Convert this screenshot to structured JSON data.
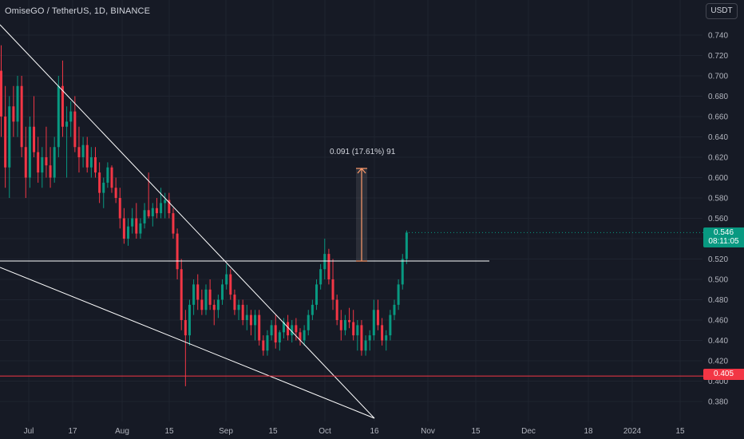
{
  "header": {
    "symbol_name": "OmiseGO",
    "quote_name": "TetherUS",
    "interval": "1D",
    "exchange": "BINANCE"
  },
  "toolbar": {
    "currency_label": "USDT"
  },
  "price_axis": {
    "labels": [
      "0.740",
      "0.720",
      "0.700",
      "0.680",
      "0.660",
      "0.640",
      "0.620",
      "0.600",
      "0.580",
      "0.560",
      "0.540",
      "0.520",
      "0.500",
      "0.480",
      "0.460",
      "0.440",
      "0.420",
      "0.400",
      "0.380"
    ]
  },
  "time_axis": {
    "labels": [
      "Jul",
      "17",
      "Aug",
      "15",
      "Sep",
      "15",
      "Oct",
      "16",
      "Nov",
      "15",
      "Dec",
      "18",
      "2024",
      "15"
    ]
  },
  "current_price": {
    "value": "0.546",
    "countdown": "08:11:05"
  },
  "level_marker": {
    "value": "0.405"
  },
  "measure_annotation": {
    "text": "0.091 (17.61%) 91"
  },
  "colors": {
    "background": "#161a25",
    "up": "#089981",
    "down": "#f23645",
    "grid": "#1f2430",
    "axis_text": "#b2b5be",
    "trendline": "#ffffff",
    "measure": "#ff9b6b"
  },
  "chart_data": {
    "type": "candlestick",
    "ylim": [
      0.37,
      0.75
    ],
    "horizontal_levels": [
      0.518,
      0.405
    ],
    "measure": {
      "from": 0.518,
      "to": 0.609
    },
    "candles": [
      [
        0.705,
        0.73,
        0.64,
        0.66
      ],
      [
        0.66,
        0.69,
        0.59,
        0.61
      ],
      [
        0.61,
        0.68,
        0.58,
        0.67
      ],
      [
        0.67,
        0.69,
        0.64,
        0.655
      ],
      [
        0.655,
        0.7,
        0.64,
        0.69
      ],
      [
        0.69,
        0.7,
        0.62,
        0.63
      ],
      [
        0.63,
        0.65,
        0.58,
        0.6
      ],
      [
        0.6,
        0.66,
        0.59,
        0.65
      ],
      [
        0.65,
        0.68,
        0.62,
        0.625
      ],
      [
        0.625,
        0.64,
        0.595,
        0.605
      ],
      [
        0.605,
        0.63,
        0.59,
        0.62
      ],
      [
        0.62,
        0.65,
        0.6,
        0.612
      ],
      [
        0.612,
        0.63,
        0.59,
        0.6
      ],
      [
        0.6,
        0.64,
        0.595,
        0.63
      ],
      [
        0.63,
        0.7,
        0.62,
        0.69
      ],
      [
        0.69,
        0.715,
        0.64,
        0.65
      ],
      [
        0.65,
        0.67,
        0.6,
        0.655
      ],
      [
        0.655,
        0.675,
        0.64,
        0.665
      ],
      [
        0.665,
        0.68,
        0.625,
        0.63
      ],
      [
        0.63,
        0.65,
        0.605,
        0.62
      ],
      [
        0.62,
        0.64,
        0.61,
        0.632
      ],
      [
        0.632,
        0.64,
        0.605,
        0.61
      ],
      [
        0.61,
        0.63,
        0.6,
        0.62
      ],
      [
        0.62,
        0.63,
        0.6,
        0.605
      ],
      [
        0.605,
        0.615,
        0.575,
        0.585
      ],
      [
        0.585,
        0.6,
        0.57,
        0.595
      ],
      [
        0.595,
        0.615,
        0.59,
        0.61
      ],
      [
        0.61,
        0.612,
        0.585,
        0.59
      ],
      [
        0.59,
        0.6,
        0.575,
        0.58
      ],
      [
        0.58,
        0.59,
        0.55,
        0.56
      ],
      [
        0.56,
        0.57,
        0.535,
        0.54
      ],
      [
        0.54,
        0.56,
        0.533,
        0.552
      ],
      [
        0.552,
        0.57,
        0.545,
        0.56
      ],
      [
        0.56,
        0.575,
        0.54,
        0.545
      ],
      [
        0.545,
        0.56,
        0.54,
        0.555
      ],
      [
        0.555,
        0.575,
        0.55,
        0.568
      ],
      [
        0.568,
        0.605,
        0.56,
        0.562
      ],
      [
        0.562,
        0.575,
        0.552,
        0.57
      ],
      [
        0.57,
        0.58,
        0.56,
        0.565
      ],
      [
        0.565,
        0.59,
        0.56,
        0.575
      ],
      [
        0.575,
        0.585,
        0.56,
        0.578
      ],
      [
        0.578,
        0.585,
        0.56,
        0.565
      ],
      [
        0.565,
        0.57,
        0.54,
        0.545
      ],
      [
        0.545,
        0.55,
        0.5,
        0.51
      ],
      [
        0.51,
        0.52,
        0.45,
        0.46
      ],
      [
        0.46,
        0.47,
        0.395,
        0.445
      ],
      [
        0.445,
        0.48,
        0.435,
        0.475
      ],
      [
        0.475,
        0.5,
        0.465,
        0.495
      ],
      [
        0.495,
        0.505,
        0.47,
        0.48
      ],
      [
        0.48,
        0.49,
        0.465,
        0.47
      ],
      [
        0.47,
        0.495,
        0.465,
        0.49
      ],
      [
        0.49,
        0.5,
        0.47,
        0.475
      ],
      [
        0.475,
        0.48,
        0.455,
        0.47
      ],
      [
        0.47,
        0.485,
        0.462,
        0.48
      ],
      [
        0.48,
        0.5,
        0.475,
        0.495
      ],
      [
        0.495,
        0.515,
        0.49,
        0.505
      ],
      [
        0.505,
        0.51,
        0.48,
        0.485
      ],
      [
        0.485,
        0.49,
        0.465,
        0.47
      ],
      [
        0.47,
        0.48,
        0.46,
        0.475
      ],
      [
        0.475,
        0.48,
        0.455,
        0.46
      ],
      [
        0.46,
        0.475,
        0.45,
        0.465
      ],
      [
        0.465,
        0.47,
        0.445,
        0.455
      ],
      [
        0.455,
        0.47,
        0.44,
        0.465
      ],
      [
        0.465,
        0.47,
        0.435,
        0.44
      ],
      [
        0.44,
        0.445,
        0.425,
        0.43
      ],
      [
        0.43,
        0.45,
        0.425,
        0.445
      ],
      [
        0.445,
        0.46,
        0.44,
        0.455
      ],
      [
        0.455,
        0.465,
        0.432,
        0.438
      ],
      [
        0.438,
        0.45,
        0.43,
        0.448
      ],
      [
        0.448,
        0.462,
        0.442,
        0.458
      ],
      [
        0.458,
        0.465,
        0.44,
        0.445
      ],
      [
        0.445,
        0.46,
        0.438,
        0.455
      ],
      [
        0.455,
        0.462,
        0.44,
        0.448
      ],
      [
        0.448,
        0.452,
        0.435,
        0.44
      ],
      [
        0.44,
        0.455,
        0.435,
        0.45
      ],
      [
        0.45,
        0.47,
        0.445,
        0.465
      ],
      [
        0.465,
        0.48,
        0.46,
        0.475
      ],
      [
        0.475,
        0.5,
        0.47,
        0.495
      ],
      [
        0.495,
        0.515,
        0.49,
        0.51
      ],
      [
        0.51,
        0.54,
        0.5,
        0.525
      ],
      [
        0.525,
        0.53,
        0.495,
        0.5
      ],
      [
        0.5,
        0.52,
        0.47,
        0.48
      ],
      [
        0.48,
        0.485,
        0.455,
        0.46
      ],
      [
        0.46,
        0.47,
        0.44,
        0.45
      ],
      [
        0.45,
        0.465,
        0.445,
        0.46
      ],
      [
        0.46,
        0.472,
        0.452,
        0.458
      ],
      [
        0.458,
        0.47,
        0.44,
        0.445
      ],
      [
        0.445,
        0.46,
        0.43,
        0.455
      ],
      [
        0.455,
        0.46,
        0.425,
        0.43
      ],
      [
        0.43,
        0.445,
        0.425,
        0.44
      ],
      [
        0.44,
        0.45,
        0.43,
        0.445
      ],
      [
        0.445,
        0.48,
        0.44,
        0.47
      ],
      [
        0.47,
        0.48,
        0.45,
        0.455
      ],
      [
        0.455,
        0.462,
        0.435,
        0.44
      ],
      [
        0.44,
        0.45,
        0.43,
        0.445
      ],
      [
        0.445,
        0.47,
        0.44,
        0.465
      ],
      [
        0.465,
        0.48,
        0.46,
        0.475
      ],
      [
        0.475,
        0.5,
        0.47,
        0.495
      ],
      [
        0.495,
        0.525,
        0.49,
        0.52
      ],
      [
        0.52,
        0.548,
        0.515,
        0.546
      ]
    ]
  }
}
